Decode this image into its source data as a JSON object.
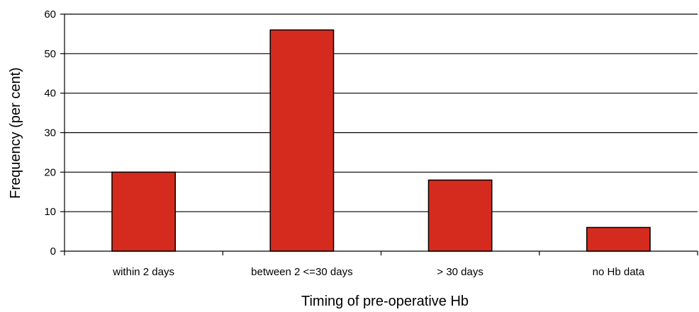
{
  "chart_data": {
    "type": "bar",
    "title": "",
    "xlabel": "Timing of pre-operative Hb",
    "ylabel": "Frequency (per cent)",
    "categories": [
      "within 2 days",
      "between 2 <=30 days",
      "> 30 days",
      "no Hb data"
    ],
    "values": [
      20,
      56,
      18,
      6
    ],
    "ylim": [
      0,
      60
    ],
    "yticks": [
      0,
      10,
      20,
      30,
      40,
      50,
      60
    ],
    "grid": true,
    "legend": "none",
    "bar_color": "#d52b1e"
  }
}
